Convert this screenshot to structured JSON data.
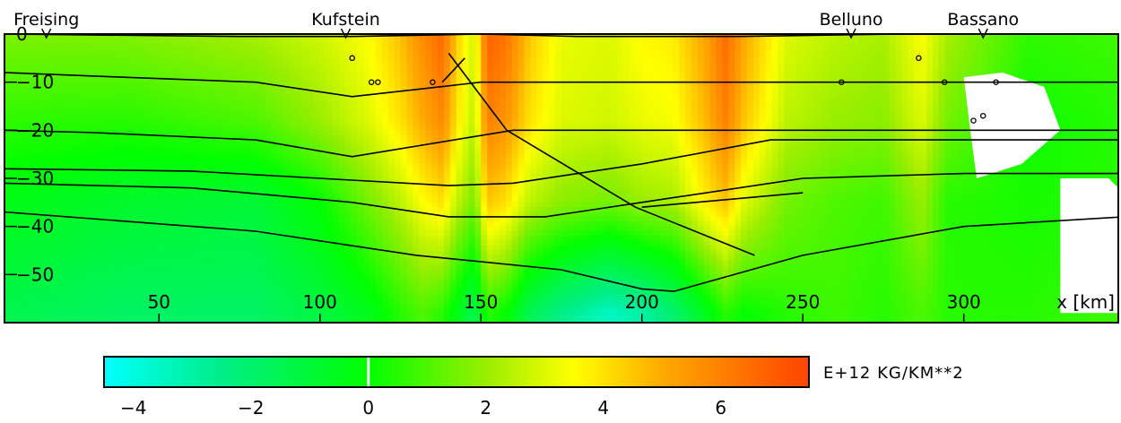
{
  "chart_data": {
    "type": "heatmap",
    "x_axis": {
      "label": "x [km]",
      "ticks": [
        50,
        100,
        150,
        200,
        250,
        300
      ],
      "range": [
        2,
        348
      ]
    },
    "y_axis": {
      "label": "",
      "ticks": [
        0,
        -10,
        -20,
        -30,
        -40,
        -50
      ],
      "tick_labels": [
        "0",
        "−10",
        "−20",
        "−30",
        "−40",
        "−50"
      ],
      "range": [
        -60,
        0
      ]
    },
    "stations": [
      {
        "name": "Freising",
        "x": 15
      },
      {
        "name": "Kufstein",
        "x": 108
      },
      {
        "name": "Belluno",
        "x": 265
      },
      {
        "name": "Bassano",
        "x": 306
      }
    ],
    "colorbar": {
      "unit_label": "E+12 KG/KM**2",
      "ticks": [
        -4,
        -2,
        0,
        2,
        4,
        6
      ],
      "tick_labels": [
        "−4",
        "−2",
        "0",
        "2",
        "4",
        "6"
      ],
      "range": [
        -4.5,
        7.5
      ],
      "color_stops": [
        {
          "v": -4.5,
          "c": "#00ffff"
        },
        {
          "v": -2.5,
          "c": "#00ee88"
        },
        {
          "v": 0,
          "c": "#00ff00"
        },
        {
          "v": 2,
          "c": "#99ee00"
        },
        {
          "v": 3.5,
          "c": "#ffff00"
        },
        {
          "v": 5,
          "c": "#ffaa00"
        },
        {
          "v": 7.5,
          "c": "#ff4400"
        }
      ]
    },
    "columns": [
      {
        "x": 2,
        "v": [
          1.6,
          0.6,
          -0.4,
          -1.4
        ]
      },
      {
        "x": 40,
        "v": [
          1.7,
          0.5,
          -0.8,
          -1.8
        ]
      },
      {
        "x": 80,
        "v": [
          2.2,
          1.0,
          -1.0,
          -1.8
        ]
      },
      {
        "x": 100,
        "v": [
          2.8,
          2.0,
          0.0,
          -1.2
        ]
      },
      {
        "x": 115,
        "v": [
          3.5,
          3.0,
          1.5,
          -0.5
        ]
      },
      {
        "x": 125,
        "v": [
          4.6,
          4.0,
          2.5,
          0.5
        ]
      },
      {
        "x": 132,
        "v": [
          5.8,
          5.0,
          3.5,
          1.0
        ]
      },
      {
        "x": 138,
        "v": [
          6.6,
          5.8,
          4.0,
          0.5
        ]
      },
      {
        "x": 143,
        "v": [
          4.2,
          3.8,
          2.5,
          -0.5
        ]
      },
      {
        "x": 148,
        "v": [
          2.8,
          2.5,
          1.5,
          -1.5
        ]
      },
      {
        "x": 152,
        "v": [
          6.8,
          6.0,
          4.5,
          0.5
        ]
      },
      {
        "x": 158,
        "v": [
          6.3,
          5.5,
          4.0,
          0.0
        ]
      },
      {
        "x": 165,
        "v": [
          4.5,
          4.0,
          2.5,
          -1.5
        ]
      },
      {
        "x": 175,
        "v": [
          3.2,
          3.0,
          1.8,
          -2.5
        ]
      },
      {
        "x": 190,
        "v": [
          3.0,
          2.8,
          1.5,
          -3.5
        ]
      },
      {
        "x": 200,
        "v": [
          3.6,
          3.2,
          2.0,
          -3.0
        ]
      },
      {
        "x": 210,
        "v": [
          3.8,
          3.4,
          2.2,
          -2.0
        ]
      },
      {
        "x": 220,
        "v": [
          5.2,
          4.8,
          3.8,
          -0.5
        ]
      },
      {
        "x": 226,
        "v": [
          6.5,
          6.0,
          4.5,
          0.5
        ]
      },
      {
        "x": 232,
        "v": [
          5.0,
          4.5,
          3.0,
          0.0
        ]
      },
      {
        "x": 245,
        "v": [
          3.0,
          2.5,
          1.5,
          0.5
        ]
      },
      {
        "x": 260,
        "v": [
          2.5,
          2.0,
          1.0,
          0.8
        ]
      },
      {
        "x": 275,
        "v": [
          2.2,
          1.8,
          0.8,
          0.5
        ]
      },
      {
        "x": 287,
        "v": [
          3.5,
          3.0,
          2.0,
          1.0
        ]
      },
      {
        "x": 295,
        "v": [
          2.2,
          1.5,
          0.5,
          0.5
        ]
      },
      {
        "x": 320,
        "v": [
          0.6,
          0.2,
          0.3,
          0.5
        ]
      },
      {
        "x": 348,
        "v": [
          0.8,
          0.5,
          0.5,
          0.8
        ]
      }
    ],
    "depth_levels": [
      0,
      -18,
      -35,
      -58
    ],
    "layer_boundaries": [
      {
        "x": [
          2,
          75,
          110,
          150,
          180,
          230,
          280,
          350
        ],
        "y": [
          0,
          -0.5,
          -0.5,
          0,
          -0.5,
          -0.5,
          0,
          0
        ]
      },
      {
        "x": [
          2,
          40,
          80,
          110,
          150,
          230,
          330,
          350
        ],
        "y": [
          -8,
          -9,
          -10,
          -13,
          -10,
          -10,
          -10,
          -10
        ]
      },
      {
        "x": [
          2,
          30,
          80,
          110,
          160,
          230,
          350
        ],
        "y": [
          -20,
          -20.5,
          -22,
          -25.5,
          -20,
          -20,
          -20
        ]
      },
      {
        "x": [
          2,
          60,
          100,
          140,
          160,
          200,
          240,
          350
        ],
        "y": [
          -28,
          -28.5,
          -30,
          -31.5,
          -31,
          -27,
          -22,
          -22
        ]
      },
      {
        "x": [
          2,
          60,
          110,
          140,
          170,
          200,
          250,
          300,
          350
        ],
        "y": [
          -31,
          -32,
          -35,
          -38,
          -38,
          -35,
          -30,
          -29,
          -29
        ]
      },
      {
        "x": [
          2,
          80,
          130,
          175,
          200,
          210,
          250,
          300,
          350
        ],
        "y": [
          -37,
          -41,
          -46,
          -49,
          -53,
          -53.5,
          -46,
          -40,
          -38
        ]
      }
    ],
    "faults": [
      {
        "x": [
          140,
          158,
          198,
          235
        ],
        "y": [
          -4,
          -20,
          -36,
          -46
        ]
      },
      {
        "x": [
          145,
          138
        ],
        "y": [
          -5,
          -10
        ]
      },
      {
        "x": [
          200,
          250
        ],
        "y": [
          -36,
          -33
        ]
      }
    ],
    "circles": [
      {
        "x": 110,
        "y": -5
      },
      {
        "x": 116,
        "y": -10
      },
      {
        "x": 118,
        "y": -10
      },
      {
        "x": 135,
        "y": -10
      },
      {
        "x": 262,
        "y": -10
      },
      {
        "x": 286,
        "y": -5
      },
      {
        "x": 294,
        "y": -10
      },
      {
        "x": 310,
        "y": -10
      },
      {
        "x": 303,
        "y": -18
      },
      {
        "x": 306,
        "y": -17
      }
    ],
    "blank_regions": [
      {
        "x": [
          300,
          312,
          325,
          330,
          318,
          304,
          302
        ],
        "y": [
          -9,
          -8,
          -11,
          -20,
          -27,
          -30,
          -20
        ]
      },
      {
        "x": [
          330,
          345,
          348,
          348,
          330
        ],
        "y": [
          -30,
          -30,
          -32,
          -58,
          -58
        ]
      }
    ]
  }
}
